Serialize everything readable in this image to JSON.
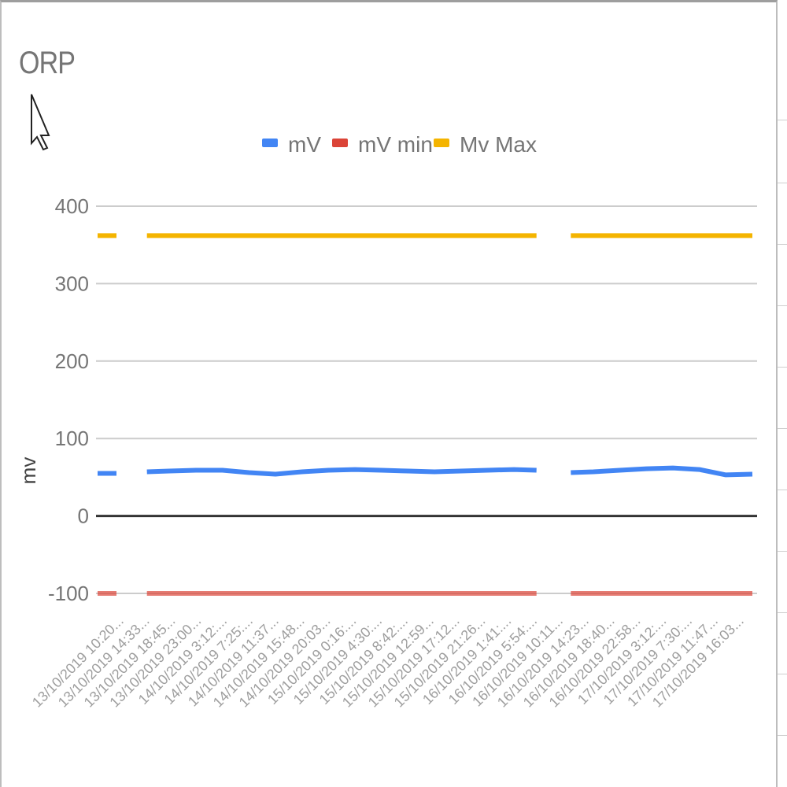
{
  "chart_data": {
    "type": "line",
    "title": "ORP",
    "ylabel": "mv",
    "xlabel": "",
    "ylim": [
      -100,
      400
    ],
    "yticks": [
      "400",
      "300",
      "200",
      "100",
      "0",
      "-100"
    ],
    "legend_position": "top",
    "grid": true,
    "categories": [
      "13/10/2019 10:20...",
      "13/10/2019 14:33...",
      "13/10/2019 18:45...",
      "13/10/2019 23:00...",
      "14/10/2019 3:12:...",
      "14/10/2019 7:25:...",
      "14/10/2019 11:37...",
      "14/10/2019 15:48...",
      "14/10/2019 20:03...",
      "15/10/2019 0:16:...",
      "15/10/2019 4:30:...",
      "15/10/2019 8:42:...",
      "15/10/2019 12:59...",
      "15/10/2019 17:12...",
      "15/10/2019 21:26...",
      "16/10/2019 1:41:...",
      "16/10/2019 5:54:...",
      "16/10/2019 10:11...",
      "16/10/2019 14:23...",
      "16/10/2019 18:40...",
      "16/10/2019 22:58...",
      "17/10/2019 3:12:...",
      "17/10/2019 7:30:...",
      "17/10/2019 11:47...",
      "17/10/2019 16:03..."
    ],
    "series": [
      {
        "name": "mV",
        "color": "#4285f4",
        "values": [
          55,
          57,
          58,
          59,
          59,
          56,
          54,
          57,
          59,
          60,
          59,
          58,
          57,
          58,
          59,
          60,
          59,
          56,
          57,
          59,
          61,
          62,
          60,
          53,
          54
        ],
        "gap_after_index": [
          0,
          16
        ]
      },
      {
        "name": "mV min",
        "color": "#db4437",
        "values": [
          -100,
          -100,
          -100,
          -100,
          -100,
          -100,
          -100,
          -100,
          -100,
          -100,
          -100,
          -100,
          -100,
          -100,
          -100,
          -100,
          -100,
          -100,
          -100,
          -100,
          -100,
          -100,
          -100,
          -100,
          -100
        ],
        "gap_after_index": [
          0,
          16
        ]
      },
      {
        "name": "Mv Max",
        "color": "#f4b400",
        "values": [
          362,
          362,
          362,
          362,
          362,
          362,
          362,
          362,
          362,
          362,
          362,
          362,
          362,
          362,
          362,
          362,
          362,
          362,
          362,
          362,
          362,
          362,
          362,
          362,
          362
        ],
        "gap_after_index": [
          0,
          16
        ]
      }
    ]
  }
}
